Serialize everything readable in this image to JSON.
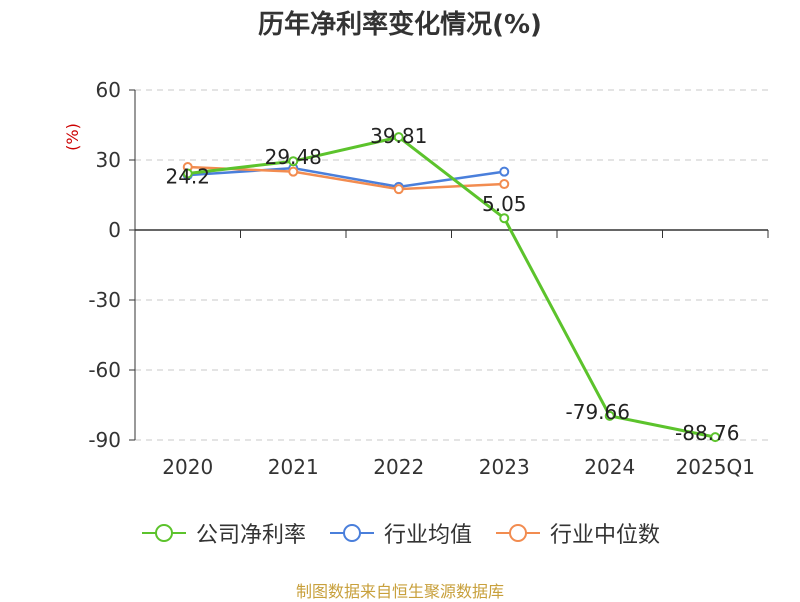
{
  "chart_data": {
    "type": "line",
    "title": "历年净利率变化情况(%)",
    "ylabel": "(%)",
    "xlabel": "",
    "categories": [
      "2020",
      "2021",
      "2022",
      "2023",
      "2024",
      "2025Q1"
    ],
    "ylim": [
      -90,
      60
    ],
    "yticks": [
      60,
      30,
      0,
      -30,
      -60,
      -90
    ],
    "grid": true,
    "legend_placement": "bottom",
    "series": [
      {
        "name": "公司净利率",
        "color": "#5cc32c",
        "values": [
          24.2,
          29.48,
          39.81,
          5.05,
          -79.66,
          -88.76
        ],
        "labels": [
          "24.2",
          "29.48",
          "39.81",
          "5.05",
          "-79.66",
          "-88.76"
        ]
      },
      {
        "name": "行业均值",
        "color": "#4a7fdb",
        "values": [
          23.5,
          26.5,
          18.5,
          25.0,
          null,
          null
        ]
      },
      {
        "name": "行业中位数",
        "color": "#f28c50",
        "values": [
          27.0,
          25.0,
          17.5,
          19.7,
          null,
          null
        ]
      }
    ]
  },
  "footer": {
    "text": "制图数据来自恒生聚源数据库",
    "color": "#c8a03c"
  }
}
